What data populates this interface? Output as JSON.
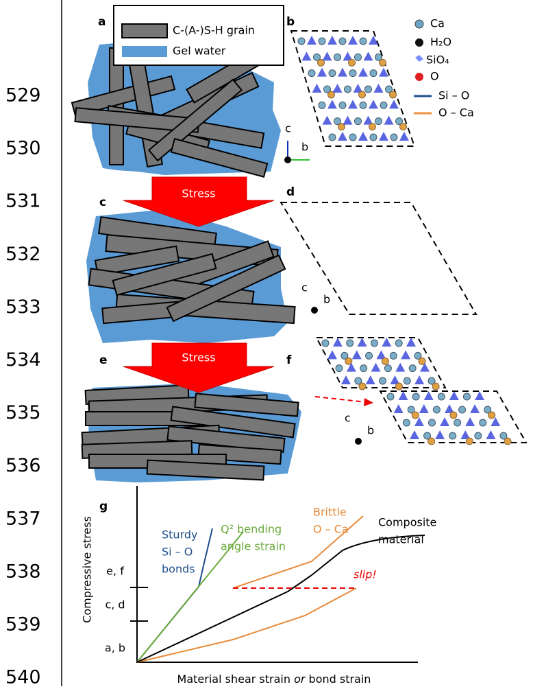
{
  "line_numbers": [
    529,
    530,
    531,
    532,
    533,
    534,
    535,
    536,
    537,
    538,
    539,
    540
  ],
  "panels": {
    "a": "a",
    "b": "b",
    "c": "c",
    "d": "d",
    "e": "e",
    "f": "f",
    "g": "g"
  },
  "legend_a": {
    "grain": "C-(A-)S-H grain",
    "water": "Gel water"
  },
  "legend_b": {
    "ca": "Ca",
    "h2o": "H₂O",
    "sio4": "SiO₄",
    "o": "O",
    "si_o": "Si – O",
    "o_ca": "O – Ca"
  },
  "stress_arrows": [
    "Stress",
    "Stress"
  ],
  "crystal_axes": {
    "b": [
      "c",
      "b"
    ],
    "d": [
      "c",
      "b"
    ],
    "f": [
      "c",
      "b"
    ]
  },
  "graph": {
    "y_label": "Compressive stress",
    "x_label": [
      "Material shear strain ",
      "or",
      " bond strain"
    ],
    "levels": [
      "e, f",
      "c, d",
      "a, b"
    ],
    "curves": {
      "si_o": [
        "Sturdy",
        "Si – O",
        "bonds"
      ],
      "q2": [
        "Q² bending",
        "angle strain"
      ],
      "o_ca": [
        "Brittle",
        "O – Ca"
      ],
      "composite": [
        "Composite",
        "material"
      ],
      "slip": "slip!"
    }
  }
}
